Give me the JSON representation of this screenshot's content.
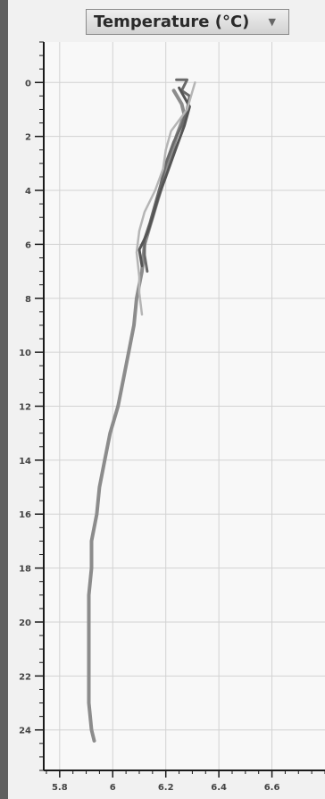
{
  "variable_selector": {
    "selected": "Temperature (°C)",
    "arrow": "chevron-down-icon"
  },
  "colors": {
    "grid": "#d2d2d2",
    "axis": "#1a1a1a",
    "plot_bg": "#f8f8f8",
    "series": [
      "#8c8c8c",
      "#6a6a6a",
      "#555555",
      "#b5b5b5"
    ]
  },
  "chart_data": {
    "type": "line",
    "orientation": "vertical-profile",
    "title": "",
    "xlabel": "",
    "ylabel": "",
    "xlim": [
      5.74,
      6.8
    ],
    "ylim": [
      25.5,
      -1.5
    ],
    "y_inverted": true,
    "grid": true,
    "x_ticks": [
      {
        "value": 5.8,
        "label": "5.8"
      },
      {
        "value": 6.0,
        "label": "6"
      },
      {
        "value": 6.2,
        "label": "6.2"
      },
      {
        "value": 6.4,
        "label": "6.4"
      },
      {
        "value": 6.6,
        "label": "6.6"
      }
    ],
    "y_ticks": [
      {
        "value": 0,
        "label": "0"
      },
      {
        "value": 2,
        "label": "2"
      },
      {
        "value": 4,
        "label": "4"
      },
      {
        "value": 6,
        "label": "6"
      },
      {
        "value": 8,
        "label": "8"
      },
      {
        "value": 10,
        "label": "10"
      },
      {
        "value": 12,
        "label": "12"
      },
      {
        "value": 14,
        "label": "14"
      },
      {
        "value": 16,
        "label": "16"
      },
      {
        "value": 18,
        "label": "18"
      },
      {
        "value": 20,
        "label": "20"
      },
      {
        "value": 22,
        "label": "22"
      },
      {
        "value": 24,
        "label": "24"
      }
    ],
    "series": [
      {
        "points": [
          [
            6.23,
            0.3
          ],
          [
            6.26,
            0.8
          ],
          [
            6.27,
            1.2
          ],
          [
            6.24,
            2.0
          ],
          [
            6.21,
            3.0
          ],
          [
            6.18,
            4.0
          ],
          [
            6.15,
            5.0
          ],
          [
            6.12,
            6.0
          ],
          [
            6.11,
            7.0
          ],
          [
            6.09,
            8.0
          ],
          [
            6.08,
            9.0
          ],
          [
            6.06,
            10.0
          ],
          [
            6.04,
            11.0
          ],
          [
            6.02,
            12.0
          ],
          [
            5.99,
            13.0
          ],
          [
            5.97,
            14.0
          ],
          [
            5.95,
            15.0
          ],
          [
            5.94,
            16.0
          ],
          [
            5.92,
            17.0
          ],
          [
            5.92,
            18.0
          ],
          [
            5.91,
            19.0
          ],
          [
            5.91,
            20.0
          ],
          [
            5.91,
            21.0
          ],
          [
            5.91,
            22.0
          ],
          [
            5.91,
            23.0
          ],
          [
            5.92,
            24.0
          ],
          [
            5.93,
            24.4
          ]
        ]
      },
      {
        "points": [
          [
            6.24,
            -0.1
          ],
          [
            6.28,
            -0.1
          ],
          [
            6.26,
            0.3
          ],
          [
            6.29,
            0.5
          ],
          [
            6.28,
            1.0
          ],
          [
            6.26,
            1.6
          ],
          [
            6.23,
            2.2
          ],
          [
            6.2,
            3.0
          ],
          [
            6.18,
            3.8
          ],
          [
            6.16,
            4.5
          ],
          [
            6.14,
            5.2
          ],
          [
            6.12,
            5.8
          ],
          [
            6.12,
            6.4
          ],
          [
            6.13,
            7.0
          ]
        ]
      },
      {
        "points": [
          [
            6.25,
            0.2
          ],
          [
            6.29,
            0.9
          ],
          [
            6.27,
            1.6
          ],
          [
            6.24,
            2.4
          ],
          [
            6.2,
            3.5
          ],
          [
            6.17,
            4.3
          ],
          [
            6.15,
            5.0
          ],
          [
            6.13,
            5.6
          ],
          [
            6.1,
            6.2
          ],
          [
            6.11,
            6.8
          ]
        ]
      },
      {
        "points": [
          [
            6.31,
            0.0
          ],
          [
            6.28,
            1.0
          ],
          [
            6.22,
            1.8
          ],
          [
            6.2,
            2.5
          ],
          [
            6.19,
            3.2
          ],
          [
            6.16,
            4.0
          ],
          [
            6.12,
            4.8
          ],
          [
            6.1,
            5.5
          ],
          [
            6.09,
            6.3
          ],
          [
            6.1,
            7.2
          ],
          [
            6.1,
            7.8
          ],
          [
            6.11,
            8.6
          ]
        ]
      }
    ]
  }
}
